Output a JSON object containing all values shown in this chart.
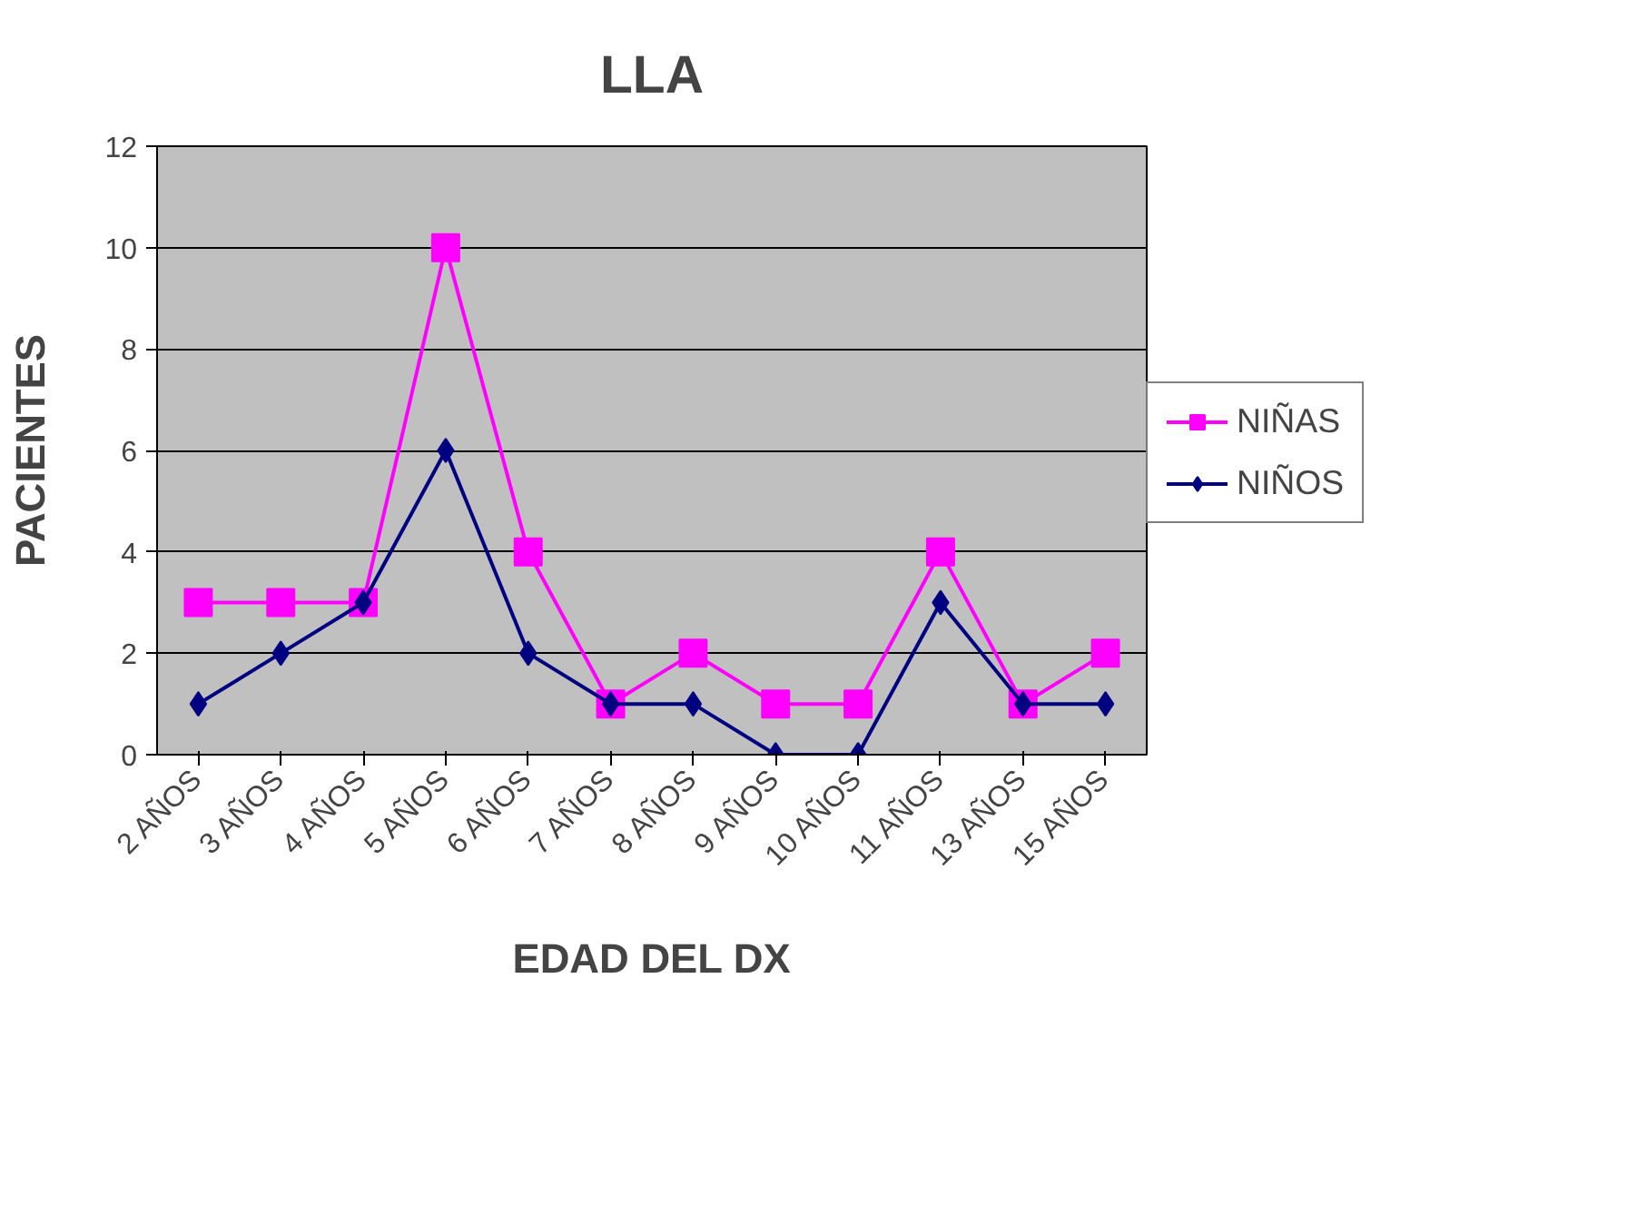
{
  "chart_data": {
    "type": "line",
    "title": "LLA",
    "xlabel": "EDAD DEL DX",
    "ylabel": "PACIENTES",
    "categories": [
      "2 AÑOS",
      "3 AÑOS",
      "4 AÑOS",
      "5 AÑOS",
      "6 AÑOS",
      "7 AÑOS",
      "8 AÑOS",
      "9 AÑOS",
      "10 AÑOS",
      "11 AÑOS",
      "13 AÑOS",
      "15 AÑOS"
    ],
    "series": [
      {
        "name": "NIÑAS",
        "color": "#ff00ff",
        "marker": "square",
        "values": [
          3,
          3,
          3,
          10,
          4,
          1,
          2,
          1,
          1,
          4,
          1,
          2
        ]
      },
      {
        "name": "NIÑOS",
        "color": "#000080",
        "marker": "diamond",
        "values": [
          1,
          2,
          3,
          6,
          2,
          1,
          1,
          0,
          0,
          3,
          1,
          1
        ]
      }
    ],
    "ylim": [
      0,
      12
    ],
    "yticks": [
      0,
      2,
      4,
      6,
      8,
      10,
      12
    ],
    "grid": "y",
    "legend": "right",
    "line_style": "solid"
  }
}
